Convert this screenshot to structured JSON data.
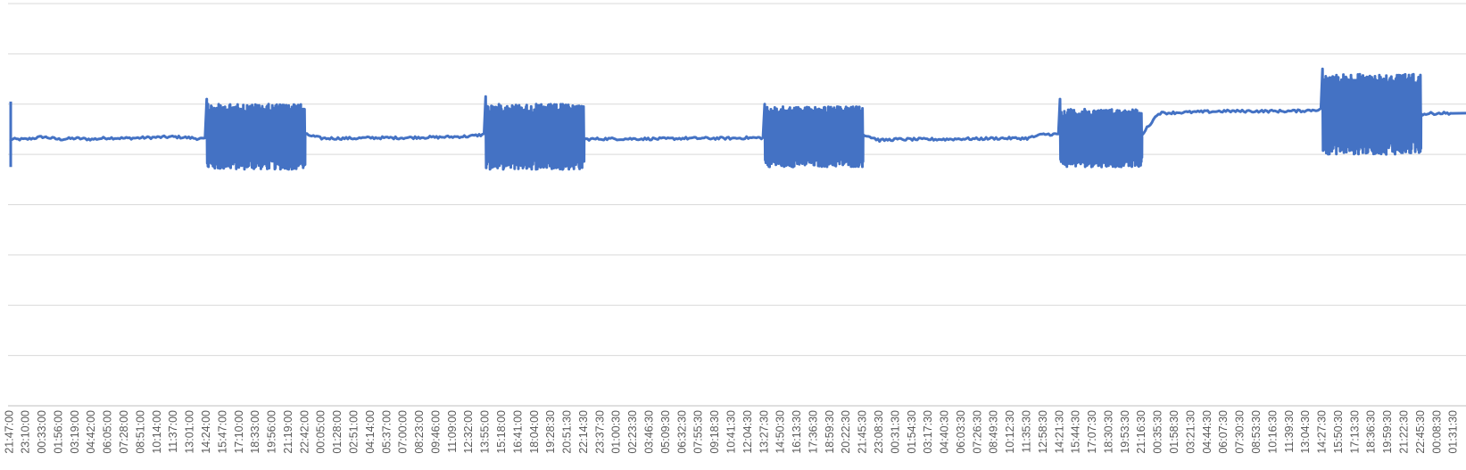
{
  "chart_data": {
    "type": "line",
    "title": "",
    "xlabel": "",
    "ylabel": "",
    "ylim": [
      0,
      8
    ],
    "grid": true,
    "legend": "none",
    "colors": {
      "series": "#4472c4",
      "grid": "#d9d9d9"
    },
    "x_tick_labels": [
      "21:47:00",
      "23:10:00",
      "00:33:00",
      "01:56:00",
      "03:19:00",
      "04:42:00",
      "06:05:00",
      "07:28:00",
      "08:51:00",
      "10:14:00",
      "11:37:00",
      "13:01:00",
      "14:24:00",
      "15:47:00",
      "17:10:00",
      "18:33:00",
      "19:56:00",
      "21:19:00",
      "22:42:00",
      "00:05:00",
      "01:28:00",
      "02:51:00",
      "04:14:00",
      "05:37:00",
      "07:00:00",
      "08:23:00",
      "09:46:00",
      "11:09:00",
      "12:32:00",
      "13:55:00",
      "15:18:00",
      "16:41:00",
      "18:04:00",
      "19:28:30",
      "20:51:30",
      "22:14:30",
      "23:37:30",
      "01:00:30",
      "02:23:30",
      "03:46:30",
      "05:09:30",
      "06:32:30",
      "07:55:30",
      "09:18:30",
      "10:41:30",
      "12:04:30",
      "13:27:30",
      "14:50:30",
      "16:13:30",
      "17:36:30",
      "18:59:30",
      "20:22:30",
      "21:45:30",
      "23:08:30",
      "00:31:30",
      "01:54:30",
      "03:17:30",
      "04:40:30",
      "06:03:30",
      "07:26:30",
      "08:49:30",
      "10:12:30",
      "11:35:30",
      "12:58:30",
      "14:21:30",
      "15:44:30",
      "17:07:30",
      "18:30:30",
      "19:53:30",
      "21:16:30",
      "00:35:30",
      "01:58:30",
      "03:21:30",
      "04:44:30",
      "06:07:30",
      "07:30:30",
      "08:53:30",
      "10:16:30",
      "11:39:30",
      "13:04:30",
      "14:27:30",
      "15:50:30",
      "17:13:30",
      "18:36:30",
      "19:59:30",
      "21:22:30",
      "22:45:30",
      "00:08:30",
      "01:31:30"
    ],
    "series": [
      {
        "color": "#4472c4",
        "values": [
          5.3,
          5.3,
          5.35,
          5.3,
          5.32,
          5.3,
          5.33,
          5.32,
          5.33,
          5.34,
          5.35,
          5.33,
          5.3,
          5.4,
          5.4,
          5.4,
          5.4,
          5.4,
          5.4,
          5.32,
          5.32,
          5.32,
          5.33,
          5.33,
          5.33,
          5.34,
          5.34,
          5.35,
          5.36,
          5.4,
          5.4,
          5.4,
          5.4,
          5.4,
          5.4,
          5.3,
          5.31,
          5.31,
          5.31,
          5.31,
          5.31,
          5.32,
          5.32,
          5.32,
          5.32,
          5.33,
          5.33,
          5.4,
          5.4,
          5.4,
          5.4,
          5.4,
          5.4,
          5.28,
          5.3,
          5.3,
          5.3,
          5.3,
          5.31,
          5.31,
          5.32,
          5.32,
          5.32,
          5.4,
          5.4,
          5.4,
          5.4,
          5.4,
          5.4,
          5.4,
          5.82,
          5.83,
          5.84,
          5.85,
          5.86,
          5.86,
          5.86,
          5.86,
          5.86,
          5.87,
          5.9,
          5.9,
          5.9,
          5.9,
          5.9,
          5.9,
          5.8,
          5.82,
          5.82
        ]
      }
    ],
    "volatile_segments": [
      {
        "from_label": "14:24:00",
        "to_label": "22:42:00",
        "low": 4.7,
        "high": 6.0,
        "spike_high": 6.1
      },
      {
        "from_label": "13:55:00",
        "to_label": "22:14:30",
        "low": 4.7,
        "high": 6.0,
        "spike_high": 6.15
      },
      {
        "from_label": "13:27:30",
        "to_label": "21:45:30",
        "low": 4.75,
        "high": 5.95,
        "spike_high": 6.0
      },
      {
        "from_label": "14:21:30",
        "to_label": "21:16:30",
        "low": 4.75,
        "high": 5.9,
        "spike_high": 6.1
      },
      {
        "from_label": "14:27:30",
        "to_label": "22:45:30",
        "low": 5.0,
        "high": 6.6,
        "spike_high": 6.7
      }
    ]
  }
}
